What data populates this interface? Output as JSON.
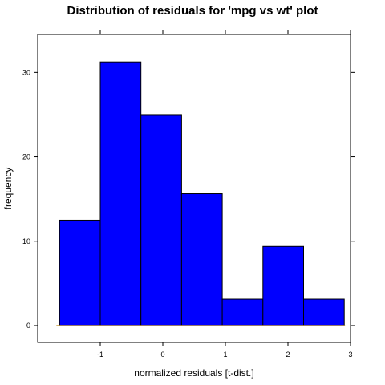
{
  "chart_data": {
    "type": "bar",
    "title": "Distribution of residuals for 'mpg vs wt' plot",
    "xlabel": "normalized residuals [t-dist.]",
    "ylabel": "frequency",
    "xlim": [
      -2.0,
      3.0
    ],
    "ylim": [
      -2.0,
      34.5
    ],
    "bin_edges": [
      -1.65,
      -1.0,
      -0.35,
      0.3,
      0.95,
      1.6,
      2.25,
      2.9
    ],
    "values": [
      12.5,
      31.25,
      25.0,
      15.63,
      3.13,
      9.38,
      3.13
    ],
    "x_ticks": [
      -1,
      0,
      1,
      2,
      3
    ],
    "y_ticks": [
      0,
      10,
      20,
      30
    ],
    "bar_color": "#0000FF",
    "grid": false
  }
}
